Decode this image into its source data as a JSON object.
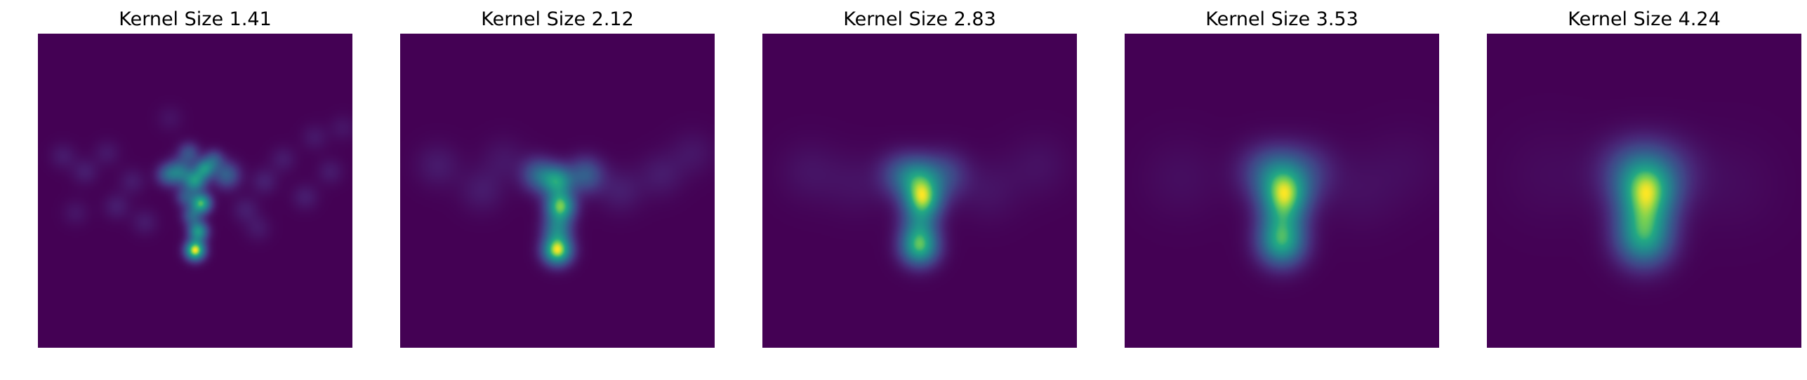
{
  "chart_data": [
    {
      "type": "heatmap",
      "title": "Kernel Size 1.41",
      "kernel_size": 1.41,
      "colormap": "viridis",
      "axes_visible": false,
      "blobs": [
        {
          "x": 0.5,
          "y": 0.69,
          "amp": 1.0,
          "sigma": 0.022
        },
        {
          "x": 0.51,
          "y": 0.63,
          "amp": 0.65,
          "sigma": 0.022
        },
        {
          "x": 0.52,
          "y": 0.54,
          "amp": 0.78,
          "sigma": 0.022
        },
        {
          "x": 0.5,
          "y": 0.47,
          "amp": 0.6,
          "sigma": 0.024
        },
        {
          "x": 0.53,
          "y": 0.43,
          "amp": 0.55,
          "sigma": 0.022
        },
        {
          "x": 0.45,
          "y": 0.44,
          "amp": 0.45,
          "sigma": 0.028
        },
        {
          "x": 0.41,
          "y": 0.45,
          "amp": 0.3,
          "sigma": 0.025
        },
        {
          "x": 0.6,
          "y": 0.45,
          "amp": 0.38,
          "sigma": 0.03
        },
        {
          "x": 0.48,
          "y": 0.38,
          "amp": 0.3,
          "sigma": 0.024
        },
        {
          "x": 0.56,
          "y": 0.4,
          "amp": 0.3,
          "sigma": 0.022
        },
        {
          "x": 0.49,
          "y": 0.58,
          "amp": 0.35,
          "sigma": 0.022
        },
        {
          "x": 0.47,
          "y": 0.52,
          "amp": 0.3,
          "sigma": 0.022
        },
        {
          "x": 0.08,
          "y": 0.39,
          "amp": 0.09,
          "sigma": 0.03
        },
        {
          "x": 0.15,
          "y": 0.44,
          "amp": 0.1,
          "sigma": 0.03
        },
        {
          "x": 0.22,
          "y": 0.38,
          "amp": 0.08,
          "sigma": 0.03
        },
        {
          "x": 0.25,
          "y": 0.55,
          "amp": 0.1,
          "sigma": 0.03
        },
        {
          "x": 0.3,
          "y": 0.47,
          "amp": 0.09,
          "sigma": 0.03
        },
        {
          "x": 0.12,
          "y": 0.57,
          "amp": 0.07,
          "sigma": 0.03
        },
        {
          "x": 0.34,
          "y": 0.6,
          "amp": 0.09,
          "sigma": 0.03
        },
        {
          "x": 0.42,
          "y": 0.27,
          "amp": 0.06,
          "sigma": 0.03
        },
        {
          "x": 0.66,
          "y": 0.56,
          "amp": 0.1,
          "sigma": 0.03
        },
        {
          "x": 0.72,
          "y": 0.47,
          "amp": 0.11,
          "sigma": 0.03
        },
        {
          "x": 0.78,
          "y": 0.4,
          "amp": 0.09,
          "sigma": 0.03
        },
        {
          "x": 0.85,
          "y": 0.52,
          "amp": 0.1,
          "sigma": 0.03
        },
        {
          "x": 0.88,
          "y": 0.33,
          "amp": 0.08,
          "sigma": 0.03
        },
        {
          "x": 0.93,
          "y": 0.44,
          "amp": 0.09,
          "sigma": 0.03
        },
        {
          "x": 0.7,
          "y": 0.62,
          "amp": 0.08,
          "sigma": 0.03
        },
        {
          "x": 0.97,
          "y": 0.3,
          "amp": 0.07,
          "sigma": 0.03
        }
      ]
    },
    {
      "type": "heatmap",
      "title": "Kernel Size 2.12",
      "kernel_size": 2.12,
      "colormap": "viridis",
      "axes_visible": false,
      "blobs": [
        {
          "x": 0.5,
          "y": 0.69,
          "amp": 0.95,
          "sigma": 0.032
        },
        {
          "x": 0.51,
          "y": 0.55,
          "amp": 0.8,
          "sigma": 0.032
        },
        {
          "x": 0.5,
          "y": 0.47,
          "amp": 0.6,
          "sigma": 0.034
        },
        {
          "x": 0.44,
          "y": 0.45,
          "amp": 0.38,
          "sigma": 0.038
        },
        {
          "x": 0.59,
          "y": 0.45,
          "amp": 0.36,
          "sigma": 0.04
        },
        {
          "x": 0.5,
          "y": 0.62,
          "amp": 0.45,
          "sigma": 0.032
        },
        {
          "x": 0.12,
          "y": 0.42,
          "amp": 0.09,
          "sigma": 0.05
        },
        {
          "x": 0.26,
          "y": 0.5,
          "amp": 0.09,
          "sigma": 0.05
        },
        {
          "x": 0.33,
          "y": 0.4,
          "amp": 0.07,
          "sigma": 0.05
        },
        {
          "x": 0.7,
          "y": 0.5,
          "amp": 0.1,
          "sigma": 0.05
        },
        {
          "x": 0.83,
          "y": 0.45,
          "amp": 0.09,
          "sigma": 0.05
        },
        {
          "x": 0.93,
          "y": 0.38,
          "amp": 0.07,
          "sigma": 0.05
        }
      ]
    },
    {
      "type": "heatmap",
      "title": "Kernel Size 2.83",
      "kernel_size": 2.83,
      "colormap": "viridis",
      "axes_visible": false,
      "blobs": [
        {
          "x": 0.5,
          "y": 0.68,
          "amp": 0.95,
          "sigma": 0.042
        },
        {
          "x": 0.51,
          "y": 0.53,
          "amp": 0.92,
          "sigma": 0.042
        },
        {
          "x": 0.5,
          "y": 0.46,
          "amp": 0.55,
          "sigma": 0.046
        },
        {
          "x": 0.44,
          "y": 0.45,
          "amp": 0.35,
          "sigma": 0.05
        },
        {
          "x": 0.58,
          "y": 0.45,
          "amp": 0.33,
          "sigma": 0.052
        },
        {
          "x": 0.5,
          "y": 0.61,
          "amp": 0.45,
          "sigma": 0.042
        },
        {
          "x": 0.15,
          "y": 0.44,
          "amp": 0.08,
          "sigma": 0.07
        },
        {
          "x": 0.3,
          "y": 0.48,
          "amp": 0.07,
          "sigma": 0.07
        },
        {
          "x": 0.72,
          "y": 0.5,
          "amp": 0.08,
          "sigma": 0.07
        },
        {
          "x": 0.88,
          "y": 0.42,
          "amp": 0.07,
          "sigma": 0.07
        }
      ]
    },
    {
      "type": "heatmap",
      "title": "Kernel Size 3.53",
      "kernel_size": 3.53,
      "colormap": "viridis",
      "axes_visible": false,
      "blobs": [
        {
          "x": 0.5,
          "y": 0.67,
          "amp": 1.0,
          "sigma": 0.052
        },
        {
          "x": 0.51,
          "y": 0.52,
          "amp": 1.0,
          "sigma": 0.052
        },
        {
          "x": 0.5,
          "y": 0.45,
          "amp": 0.5,
          "sigma": 0.058
        },
        {
          "x": 0.44,
          "y": 0.44,
          "amp": 0.32,
          "sigma": 0.062
        },
        {
          "x": 0.58,
          "y": 0.44,
          "amp": 0.3,
          "sigma": 0.064
        },
        {
          "x": 0.5,
          "y": 0.6,
          "amp": 0.5,
          "sigma": 0.052
        },
        {
          "x": 0.18,
          "y": 0.46,
          "amp": 0.07,
          "sigma": 0.09
        },
        {
          "x": 0.75,
          "y": 0.5,
          "amp": 0.07,
          "sigma": 0.09
        },
        {
          "x": 0.9,
          "y": 0.42,
          "amp": 0.05,
          "sigma": 0.09
        }
      ]
    },
    {
      "type": "heatmap",
      "title": "Kernel Size 4.24",
      "kernel_size": 4.24,
      "colormap": "viridis",
      "axes_visible": false,
      "blobs": [
        {
          "x": 0.5,
          "y": 0.66,
          "amp": 1.0,
          "sigma": 0.062
        },
        {
          "x": 0.51,
          "y": 0.51,
          "amp": 1.0,
          "sigma": 0.062
        },
        {
          "x": 0.5,
          "y": 0.44,
          "amp": 0.48,
          "sigma": 0.068
        },
        {
          "x": 0.44,
          "y": 0.44,
          "amp": 0.3,
          "sigma": 0.074
        },
        {
          "x": 0.58,
          "y": 0.44,
          "amp": 0.28,
          "sigma": 0.076
        },
        {
          "x": 0.5,
          "y": 0.59,
          "amp": 0.55,
          "sigma": 0.062
        },
        {
          "x": 0.2,
          "y": 0.45,
          "amp": 0.06,
          "sigma": 0.11
        },
        {
          "x": 0.78,
          "y": 0.48,
          "amp": 0.06,
          "sigma": 0.11
        }
      ]
    }
  ]
}
